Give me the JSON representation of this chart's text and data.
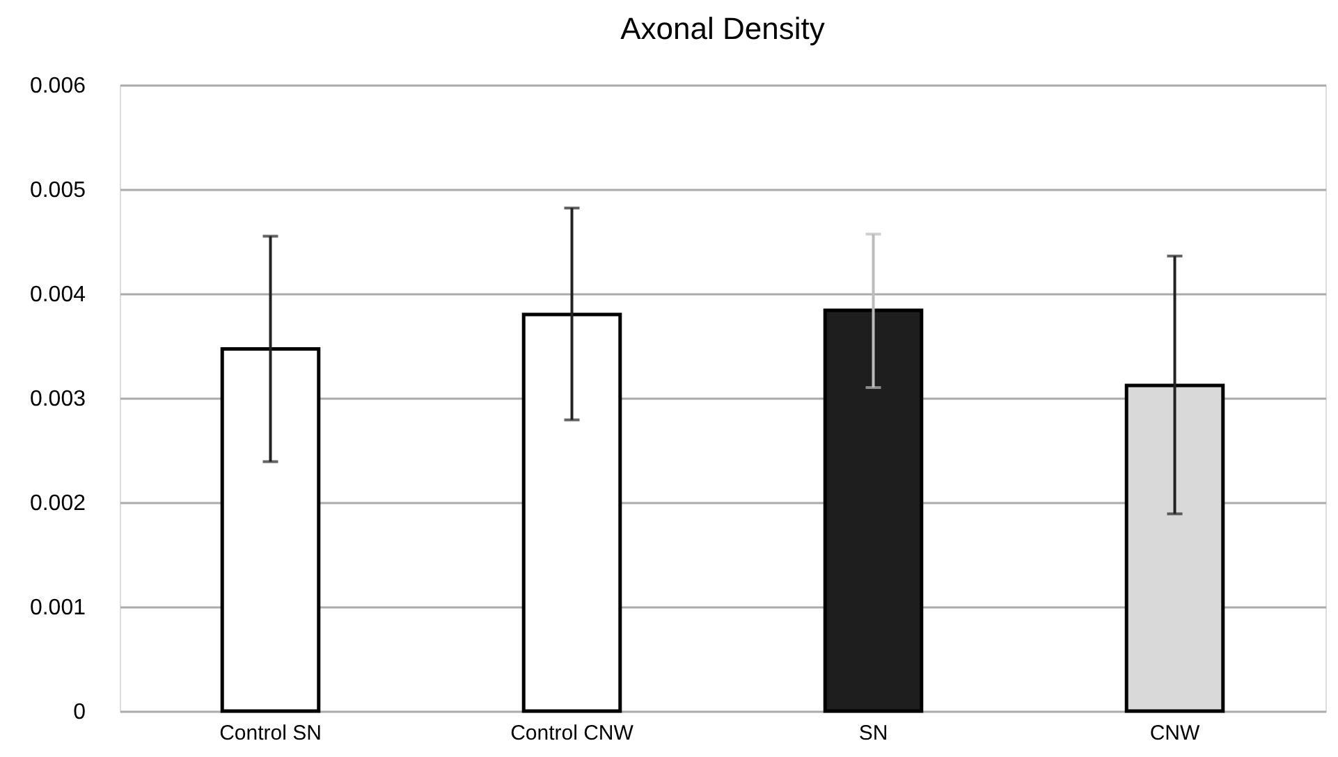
{
  "chart_data": {
    "type": "bar",
    "title": "Axonal Density",
    "categories": [
      "Control SN",
      "Control CNW",
      "SN",
      "CNW"
    ],
    "values": [
      0.00347,
      0.0038,
      0.00384,
      0.00312
    ],
    "colors": [
      "#ffffff",
      "#ffffff",
      "#1e1e1e",
      "#d9d9d9"
    ],
    "errors": [
      [
        0.00239,
        0.00455
      ],
      [
        0.00279,
        0.00482
      ],
      [
        0.0031,
        0.00457
      ],
      [
        0.00189,
        0.00436
      ]
    ],
    "ylim": [
      0,
      0.006
    ],
    "yticks": [
      0,
      0.001,
      0.002,
      0.003,
      0.004,
      0.005,
      0.006
    ],
    "grid": "y"
  }
}
